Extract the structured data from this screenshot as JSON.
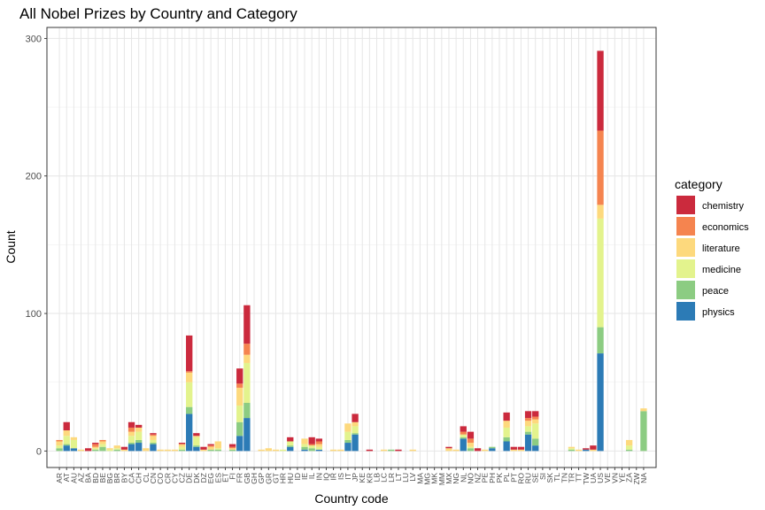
{
  "chart_data": {
    "type": "bar",
    "stacked": true,
    "title": "All Nobel Prizes by Country and Category",
    "xlabel": "Country code",
    "ylabel": "Count",
    "ylim": [
      -12,
      308
    ],
    "yticks": [
      0,
      100,
      200,
      300
    ],
    "grid": true,
    "legend": {
      "title": "category",
      "position": "right"
    },
    "categories": [
      "AR",
      "AT",
      "AU",
      "AZ",
      "BA",
      "BD",
      "BE",
      "BG",
      "BR",
      "BY",
      "CA",
      "CH",
      "CL",
      "CN",
      "CO",
      "CR",
      "CY",
      "CZ",
      "DE",
      "DK",
      "DZ",
      "EG",
      "ES",
      "ET",
      "FI",
      "FR",
      "GB",
      "GH",
      "GP",
      "GR",
      "GT",
      "HR",
      "HU",
      "ID",
      "IE",
      "IL",
      "IN",
      "IQ",
      "IR",
      "IS",
      "IT",
      "JP",
      "KE",
      "KR",
      "LB",
      "LC",
      "LR",
      "LT",
      "LU",
      "LV",
      "MA",
      "MG",
      "MK",
      "MM",
      "MX",
      "NG",
      "NL",
      "NO",
      "NZ",
      "PE",
      "PH",
      "PK",
      "PL",
      "PT",
      "RO",
      "RU",
      "SE",
      "SI",
      "SK",
      "TL",
      "TN",
      "TR",
      "TT",
      "TW",
      "UA",
      "US",
      "VE",
      "VN",
      "YE",
      "ZA",
      "ZW",
      "NA"
    ],
    "series": [
      {
        "name": "physics",
        "color": "#2c7bb6",
        "values": [
          0,
          4,
          2,
          0,
          0,
          0,
          0,
          0,
          0,
          0,
          5,
          6,
          0,
          5,
          0,
          0,
          0,
          0,
          27,
          3,
          0,
          0,
          0,
          0,
          0,
          11,
          24,
          0,
          0,
          0,
          0,
          0,
          3,
          0,
          1,
          0,
          1,
          0,
          0,
          0,
          6,
          12,
          0,
          0,
          0,
          0,
          0,
          0,
          0,
          0,
          0,
          0,
          0,
          0,
          0,
          0,
          9,
          0,
          0,
          0,
          2,
          0,
          7,
          0,
          0,
          12,
          4,
          0,
          0,
          0,
          0,
          0,
          0,
          1,
          0,
          71,
          0,
          0,
          0,
          0,
          0,
          0
        ]
      },
      {
        "name": "peace",
        "color": "#8ccc82",
        "values": [
          2,
          1,
          0,
          0,
          0,
          1,
          3,
          0,
          1,
          0,
          1,
          2,
          0,
          1,
          0,
          0,
          0,
          1,
          5,
          1,
          0,
          1,
          1,
          0,
          1,
          10,
          11,
          0,
          0,
          0,
          0,
          0,
          1,
          0,
          2,
          2,
          0,
          0,
          0,
          0,
          2,
          1,
          0,
          0,
          0,
          0,
          1,
          0,
          0,
          0,
          0,
          0,
          0,
          0,
          0,
          0,
          1,
          2,
          0,
          0,
          1,
          0,
          3,
          0,
          0,
          2,
          5,
          0,
          0,
          0,
          0,
          1,
          0,
          0,
          0,
          19,
          0,
          0,
          0,
          1,
          0,
          29
        ]
      },
      {
        "name": "medicine",
        "color": "#e3f38d",
        "values": [
          2,
          6,
          6,
          0,
          0,
          1,
          2,
          1,
          1,
          0,
          5,
          6,
          0,
          2,
          0,
          0,
          0,
          2,
          18,
          6,
          0,
          0,
          1,
          0,
          0,
          12,
          29,
          0,
          0,
          0,
          0,
          1,
          3,
          0,
          2,
          2,
          2,
          0,
          0,
          0,
          6,
          5,
          0,
          0,
          0,
          0,
          0,
          0,
          0,
          0,
          0,
          0,
          0,
          0,
          0,
          0,
          2,
          1,
          0,
          0,
          0,
          0,
          7,
          0,
          0,
          4,
          11,
          0,
          0,
          0,
          0,
          1,
          0,
          0,
          0,
          79,
          0,
          0,
          0,
          3,
          0,
          0
        ]
      },
      {
        "name": "literature",
        "color": "#fdd97d",
        "values": [
          3,
          4,
          2,
          1,
          0,
          1,
          2,
          1,
          2,
          1,
          3,
          3,
          2,
          3,
          1,
          1,
          1,
          2,
          7,
          1,
          1,
          2,
          5,
          0,
          1,
          13,
          6,
          0,
          1,
          2,
          1,
          0,
          0,
          0,
          4,
          0,
          2,
          0,
          1,
          1,
          6,
          3,
          0,
          0,
          0,
          1,
          0,
          0,
          0,
          1,
          0,
          0,
          0,
          0,
          2,
          1,
          0,
          3,
          0,
          1,
          0,
          0,
          5,
          1,
          1,
          4,
          3,
          0,
          0,
          0,
          0,
          1,
          1,
          0,
          1,
          10,
          0,
          0,
          0,
          4,
          0,
          2
        ]
      },
      {
        "name": "economics",
        "color": "#f5844f",
        "values": [
          1,
          0,
          0,
          0,
          0,
          2,
          1,
          0,
          0,
          0,
          3,
          0,
          0,
          1,
          0,
          0,
          0,
          0,
          1,
          0,
          0,
          1,
          0,
          0,
          1,
          3,
          8,
          0,
          0,
          0,
          0,
          0,
          0,
          0,
          0,
          1,
          2,
          0,
          0,
          0,
          0,
          0,
          0,
          0,
          0,
          0,
          0,
          0,
          0,
          0,
          0,
          0,
          0,
          0,
          0,
          0,
          2,
          3,
          0,
          0,
          0,
          0,
          0,
          0,
          0,
          2,
          2,
          0,
          0,
          0,
          0,
          0,
          0,
          0,
          0,
          54,
          0,
          0,
          0,
          0,
          0,
          0
        ]
      },
      {
        "name": "chemistry",
        "color": "#cb2a3d",
        "values": [
          0,
          6,
          0,
          0,
          2,
          1,
          0,
          0,
          0,
          2,
          4,
          2,
          0,
          1,
          0,
          0,
          0,
          1,
          26,
          2,
          2,
          1,
          0,
          0,
          2,
          11,
          28,
          0,
          0,
          0,
          0,
          0,
          3,
          0,
          0,
          5,
          2,
          0,
          0,
          0,
          0,
          6,
          0,
          1,
          0,
          0,
          0,
          1,
          0,
          0,
          0,
          0,
          0,
          0,
          1,
          0,
          4,
          5,
          2,
          0,
          0,
          0,
          6,
          2,
          2,
          5,
          4,
          0,
          0,
          0,
          0,
          0,
          0,
          1,
          3,
          58,
          0,
          0,
          0,
          0,
          0,
          0
        ]
      }
    ]
  }
}
